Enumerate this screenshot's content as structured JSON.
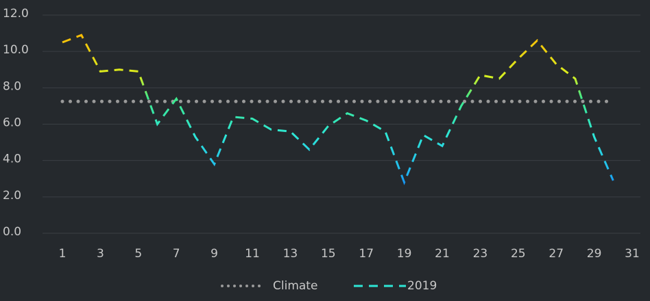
{
  "chart_data": {
    "type": "line",
    "x": [
      1,
      2,
      3,
      4,
      5,
      6,
      7,
      8,
      9,
      10,
      11,
      12,
      13,
      14,
      15,
      16,
      17,
      18,
      19,
      20,
      21,
      22,
      23,
      24,
      25,
      26,
      27,
      28,
      29,
      30
    ],
    "series": [
      {
        "name": "Climate",
        "color": "#9a9a9a",
        "style": "dotted",
        "values": [
          7.25,
          7.25,
          7.25,
          7.25,
          7.25,
          7.25,
          7.25,
          7.25,
          7.25,
          7.25,
          7.25,
          7.25,
          7.25,
          7.25,
          7.25,
          7.25,
          7.25,
          7.25,
          7.25,
          7.25,
          7.25,
          7.25,
          7.25,
          7.25,
          7.25,
          7.25,
          7.25,
          7.25,
          7.25,
          7.25
        ]
      },
      {
        "name": "2019",
        "color": "#2ee6d6",
        "style": "dashed",
        "values": [
          10.5,
          10.9,
          8.9,
          9.0,
          8.9,
          6.0,
          7.4,
          5.3,
          3.8,
          6.4,
          6.3,
          5.7,
          5.6,
          4.6,
          5.9,
          6.6,
          6.2,
          5.6,
          2.8,
          5.4,
          4.8,
          7.0,
          8.7,
          8.5,
          9.6,
          10.6,
          9.3,
          8.5,
          5.3,
          2.9
        ]
      }
    ],
    "xlim": [
      1,
      31
    ],
    "xticks": [
      1,
      3,
      5,
      7,
      9,
      11,
      13,
      15,
      17,
      19,
      21,
      23,
      25,
      27,
      29,
      31
    ],
    "ylim": [
      0,
      12
    ],
    "yticks": [
      {
        "value": 0,
        "label": "0.0"
      },
      {
        "value": 2,
        "label": "2.0"
      },
      {
        "value": 4,
        "label": "4.0"
      },
      {
        "value": 6,
        "label": "6.0"
      },
      {
        "value": 8,
        "label": "8.0"
      },
      {
        "value": 10,
        "label": "10.0"
      },
      {
        "value": 12,
        "label": "12.0"
      }
    ],
    "grid": true,
    "legend": "bottom"
  }
}
